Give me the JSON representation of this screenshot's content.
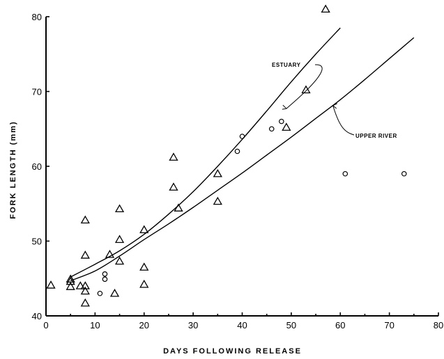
{
  "chart_data": {
    "type": "scatter",
    "title": "",
    "xlabel": "DAYS   FOLLOWING   RELEASE",
    "ylabel": "FORK   LENGTH   (mm)",
    "xlim": [
      0,
      80
    ],
    "ylim": [
      40,
      80
    ],
    "xticks": [
      "0",
      "10",
      "20",
      "30",
      "40",
      "50",
      "60",
      "70",
      "80"
    ],
    "yticks": [
      "40",
      "50",
      "60",
      "70",
      "80"
    ],
    "grid": false,
    "series": [
      {
        "marker": "triangle",
        "points": [
          [
            1,
            44.1
          ],
          [
            5,
            43.9
          ],
          [
            5,
            44.6
          ],
          [
            5,
            44.9
          ],
          [
            7,
            44.0
          ],
          [
            8,
            41.7
          ],
          [
            8,
            43.3
          ],
          [
            8,
            44.0
          ],
          [
            8,
            48.1
          ],
          [
            8,
            52.8
          ],
          [
            13,
            48.2
          ],
          [
            14,
            43.0
          ],
          [
            15,
            47.3
          ],
          [
            15,
            50.2
          ],
          [
            15,
            54.3
          ],
          [
            20,
            44.2
          ],
          [
            20,
            46.5
          ],
          [
            20,
            51.5
          ],
          [
            26,
            57.2
          ],
          [
            26,
            61.2
          ],
          [
            27,
            54.4
          ],
          [
            35,
            55.3
          ],
          [
            35,
            59.0
          ],
          [
            49,
            65.2
          ],
          [
            53,
            70.2
          ],
          [
            57,
            81.0
          ]
        ]
      },
      {
        "marker": "circle",
        "points": [
          [
            11,
            43.0
          ],
          [
            12,
            44.9
          ],
          [
            12,
            45.6
          ],
          [
            39,
            62.0
          ],
          [
            40,
            64.0
          ],
          [
            46,
            65.0
          ],
          [
            48,
            66.0
          ],
          [
            61,
            59.0
          ],
          [
            73,
            59.0
          ]
        ]
      }
    ],
    "curves": [
      {
        "label": "ESTUARY",
        "points": [
          [
            5,
            45.2
          ],
          [
            10,
            46.9
          ],
          [
            15,
            48.7
          ],
          [
            20,
            50.9
          ],
          [
            25,
            53.6
          ],
          [
            30,
            56.6
          ],
          [
            35,
            60.0
          ],
          [
            40,
            63.6
          ],
          [
            45,
            67.4
          ],
          [
            50,
            71.3
          ],
          [
            55,
            75.0
          ],
          [
            60,
            78.5
          ]
        ]
      },
      {
        "label": "UPPER RIVER",
        "points": [
          [
            5,
            44.7
          ],
          [
            10,
            46.0
          ],
          [
            15,
            48.0
          ],
          [
            20,
            50.2
          ],
          [
            25,
            52.3
          ],
          [
            30,
            54.5
          ],
          [
            35,
            56.8
          ],
          [
            40,
            59.1
          ],
          [
            45,
            61.5
          ],
          [
            50,
            63.9
          ],
          [
            55,
            66.4
          ],
          [
            60,
            68.9
          ],
          [
            65,
            71.6
          ],
          [
            70,
            74.4
          ],
          [
            75,
            77.2
          ]
        ]
      }
    ]
  }
}
